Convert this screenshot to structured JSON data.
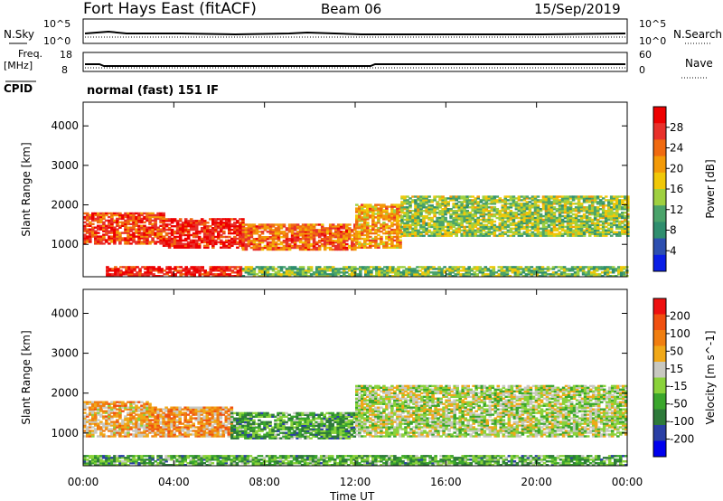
{
  "header": {
    "station": "Fort Hays East (fitACF)",
    "beam": "Beam 06",
    "date": "15/Sep/2019"
  },
  "top_panels": {
    "nsky_label": "N.Sky",
    "nsearch_label": "N.Search",
    "noise_ticks": [
      "10^5",
      "10^0"
    ],
    "freq_label": "Freq.",
    "freq_unit": "[MHz]",
    "freq_ticks": [
      "18",
      "8"
    ],
    "nave_label": "Nave",
    "nave_ticks": [
      "60",
      "0"
    ],
    "cpid_label": "CPID",
    "cpid_text": "normal (fast) 151 IF"
  },
  "colors": {
    "power_scale": [
      "#0a1ee6",
      "#2d4fb0",
      "#2f8e6e",
      "#4aa36a",
      "#9fd040",
      "#f0c808",
      "#f39a08",
      "#f06a10",
      "#e8302a",
      "#ee0000"
    ],
    "velocity_scale": [
      "#0000ee",
      "#2a3fa5",
      "#2e7a3a",
      "#3aa62c",
      "#8ad23a",
      "#c8c8c0",
      "#f0a818",
      "#f07e10",
      "#f05010",
      "#ee1010"
    ]
  },
  "chart_data": [
    {
      "type": "heatmap",
      "title": "Power",
      "ylabel": "Slant Range [km]",
      "xlabel": "Time UT",
      "x_ticks": [
        "00:00",
        "04:00",
        "08:00",
        "12:00",
        "16:00",
        "20:00",
        "00:00"
      ],
      "y_ticks": [
        "1000",
        "2000",
        "3000",
        "4000"
      ],
      "ylim": [
        180,
        4600
      ],
      "colorbar_label": "Power [dB]",
      "colorbar_ticks": [
        "4",
        "8",
        "12",
        "16",
        "20",
        "24",
        "28"
      ],
      "clim": [
        0,
        32
      ],
      "regions": [
        {
          "t0": 0.0,
          "t1": 3.5,
          "r0": 1000,
          "r1": 1800,
          "level": 0.82
        },
        {
          "t0": 3.5,
          "t1": 7.0,
          "r0": 900,
          "r1": 1650,
          "level": 0.9
        },
        {
          "t0": 7.0,
          "t1": 12.0,
          "r0": 850,
          "r1": 1500,
          "level": 0.75
        },
        {
          "t0": 12.0,
          "t1": 14.0,
          "r0": 900,
          "r1": 2000,
          "level": 0.65
        },
        {
          "t0": 14.0,
          "t1": 24.0,
          "r0": 1200,
          "r1": 2200,
          "level": 0.45
        },
        {
          "t0": 1.0,
          "t1": 7.0,
          "r0": 180,
          "r1": 450,
          "level": 0.9
        },
        {
          "t0": 7.0,
          "t1": 24.0,
          "r0": 180,
          "r1": 420,
          "level": 0.4
        }
      ]
    },
    {
      "type": "heatmap",
      "title": "Velocity",
      "ylabel": "Slant Range [km]",
      "xlabel": "Time UT",
      "x_ticks": [
        "00:00",
        "04:00",
        "08:00",
        "12:00",
        "16:00",
        "20:00",
        "00:00"
      ],
      "y_ticks": [
        "1000",
        "2000",
        "3000",
        "4000"
      ],
      "ylim": [
        180,
        4600
      ],
      "colorbar_label": "Velocity [m s^-1]",
      "colorbar_ticks": [
        "200",
        "100",
        "50",
        "15",
        "-15",
        "-50",
        "-100",
        "-200"
      ],
      "clim": [
        -250,
        250
      ],
      "regions": [
        {
          "t0": 0.0,
          "t1": 3.0,
          "r0": 900,
          "r1": 1800,
          "level": 0.65
        },
        {
          "t0": 3.0,
          "t1": 6.5,
          "r0": 900,
          "r1": 1650,
          "level": 0.7
        },
        {
          "t0": 6.5,
          "t1": 12.0,
          "r0": 850,
          "r1": 1500,
          "level": 0.35
        },
        {
          "t0": 12.0,
          "t1": 24.0,
          "r0": 900,
          "r1": 2200,
          "level": 0.5
        },
        {
          "t0": 0.0,
          "t1": 24.0,
          "r0": 180,
          "r1": 450,
          "level": 0.35
        }
      ]
    }
  ]
}
